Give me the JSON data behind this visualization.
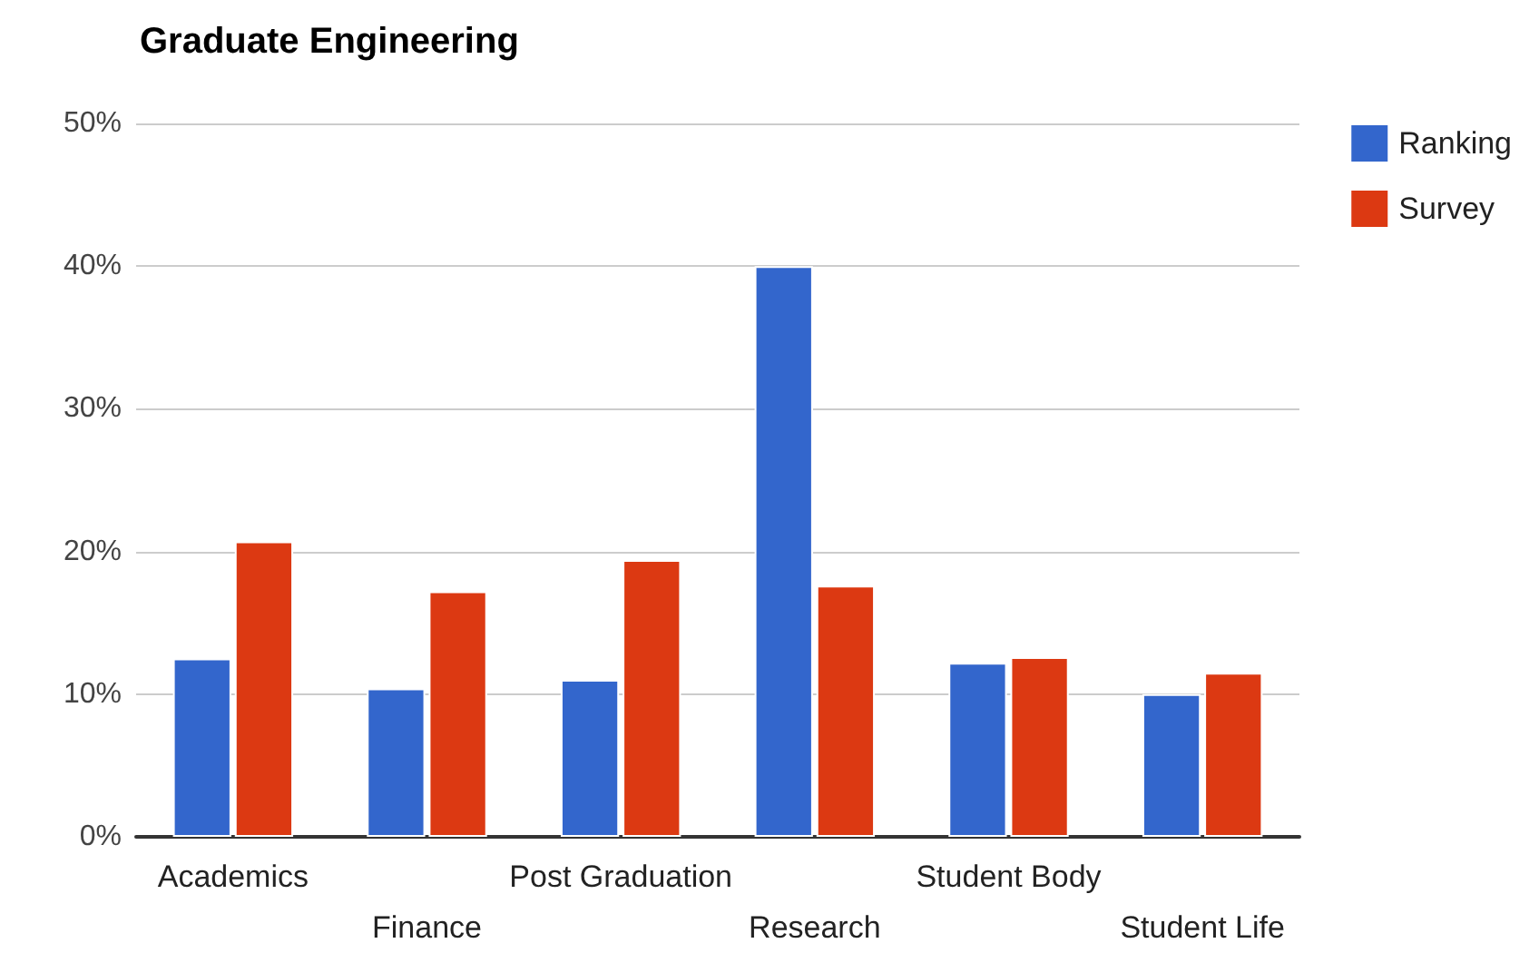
{
  "chart_data": {
    "type": "bar",
    "title": "Graduate Engineering",
    "categories": [
      "Academics",
      "Finance",
      "Post Graduation",
      "Research",
      "Student Body",
      "Student Life"
    ],
    "series": [
      {
        "name": "Ranking",
        "color": "#3366cc",
        "values": [
          12.5,
          10.4,
          11.0,
          40.0,
          12.2,
          10.0
        ]
      },
      {
        "name": "Survey",
        "color": "#dc3912",
        "values": [
          20.7,
          17.2,
          19.4,
          17.6,
          12.6,
          11.5
        ]
      }
    ],
    "ylim": [
      0,
      50
    ],
    "yticks": [
      {
        "value": 0,
        "label": "0%"
      },
      {
        "value": 10,
        "label": "10%"
      },
      {
        "value": 20,
        "label": "20%"
      },
      {
        "value": 30,
        "label": "30%"
      },
      {
        "value": 40,
        "label": "40%"
      },
      {
        "value": 50,
        "label": "50%"
      }
    ],
    "grid": "y",
    "legend": "top right"
  }
}
